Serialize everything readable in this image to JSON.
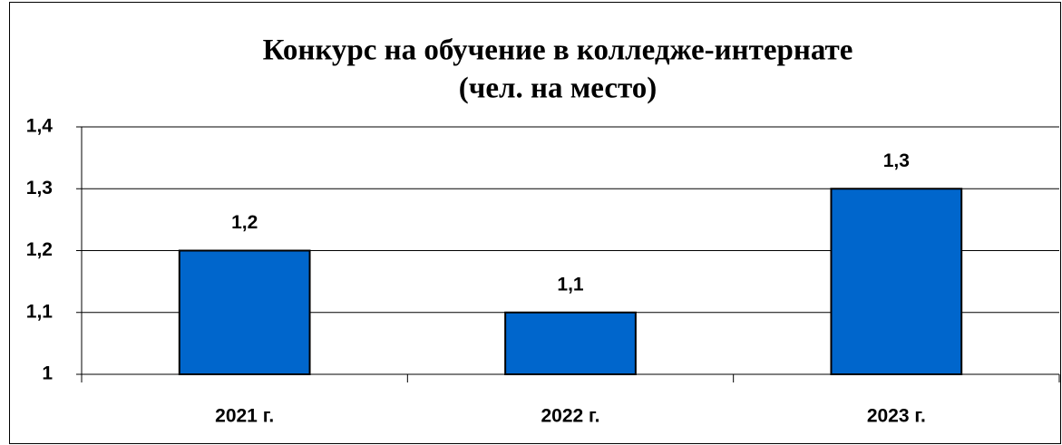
{
  "chart_data": {
    "type": "bar",
    "title": "Конкурс на обучение в колледже-интернате",
    "subtitle": "(чел. на место)",
    "categories": [
      "2021 г.",
      "2022 г.",
      "2023 г."
    ],
    "values": [
      1.2,
      1.1,
      1.3
    ],
    "value_labels": [
      "1,2",
      "1,1",
      "1,3"
    ],
    "color": "#0066cc",
    "ylim": [
      1,
      1.4
    ],
    "yticks": [
      1,
      {
        "value": 1.1,
        "label": "1,1"
      },
      {
        "value": 1.2,
        "label": "1,2"
      },
      {
        "value": 1.3,
        "label": "1,3"
      },
      {
        "value": 1.4,
        "label": "1,4"
      }
    ],
    "grid": true
  }
}
